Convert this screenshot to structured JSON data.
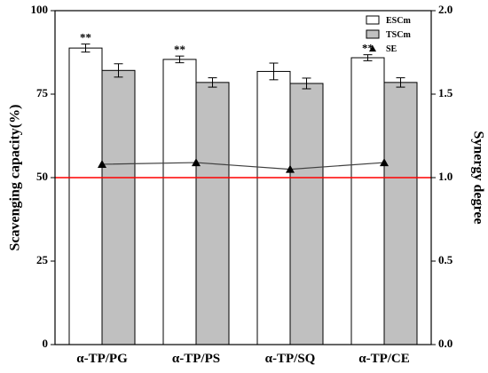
{
  "chart_data": {
    "type": "bar",
    "categories": [
      "α-TP/PG",
      "α-TP/PS",
      "α-TP/SQ",
      "α-TP/CE"
    ],
    "series": [
      {
        "name": "ESCm",
        "values": [
          88.8,
          85.4,
          81.8,
          85.9
        ],
        "errors": [
          1.2,
          1.0,
          2.5,
          0.9
        ],
        "color": "#ffffff"
      },
      {
        "name": "TSCm",
        "values": [
          82.1,
          78.5,
          78.2,
          78.5
        ],
        "errors": [
          2.0,
          1.4,
          1.6,
          1.4
        ],
        "color": "#c0c0c0"
      }
    ],
    "line_series": {
      "name": "SE",
      "axis": "right",
      "values": [
        1.08,
        1.09,
        1.05,
        1.09
      ],
      "color": "#404040"
    },
    "significance": [
      "**",
      "**",
      "",
      "**"
    ],
    "reference_line": {
      "axis": "right",
      "value": 1.0,
      "color": "#ff0000"
    },
    "ylabel": "Scavenging capacity(%)",
    "ylabel_right": "Synergy degree",
    "ylim": [
      0,
      100
    ],
    "ylim_right": [
      0.0,
      2.0
    ],
    "yticks": [
      0,
      25,
      50,
      75,
      100
    ],
    "yticks_right": [
      "0.0",
      "0.5",
      "1.0",
      "1.5",
      "2.0"
    ],
    "legend_position": "top-right",
    "grid": false
  }
}
